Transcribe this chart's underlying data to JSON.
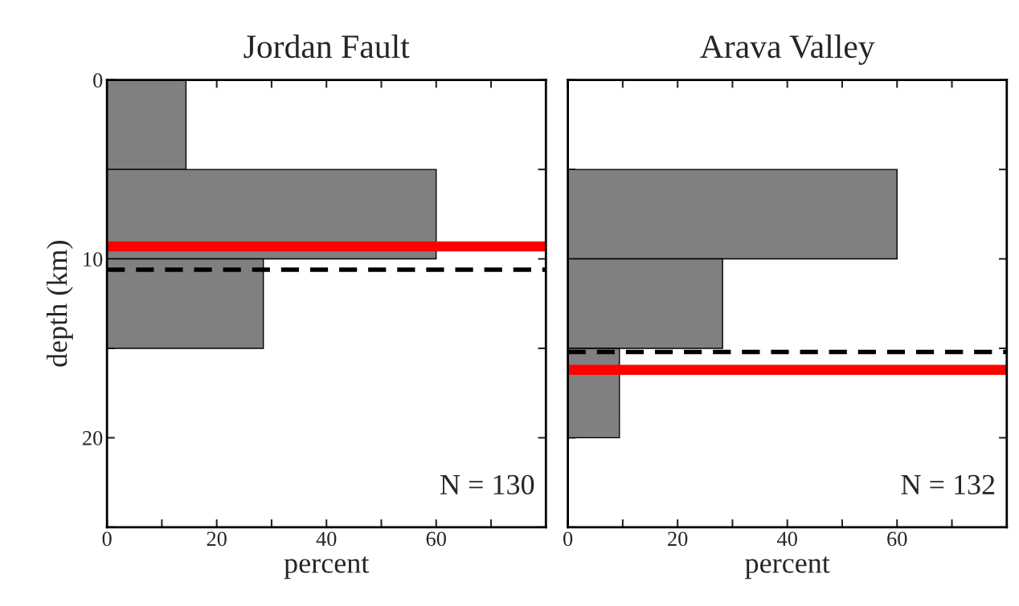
{
  "chart_data": [
    {
      "type": "histogram",
      "title": "Jordan Fault",
      "xlabel": "percent",
      "ylabel": "depth (km)",
      "orientation": "horizontal",
      "bins": [
        0,
        5,
        10,
        15
      ],
      "values": [
        14.4,
        60,
        28.5
      ],
      "color": "#808080",
      "xlim": [
        0,
        80
      ],
      "xticks": [
        0,
        {
          "value": 10,
          "label": null
        },
        20,
        {
          "value": 30,
          "label": null
        },
        40,
        {
          "value": 50,
          "label": null
        },
        60,
        {
          "value": 70,
          "label": null
        }
      ],
      "ylim": [
        25,
        0
      ],
      "yticks": [
        0,
        {
          "value": 5,
          "label": null
        },
        10,
        {
          "value": 15,
          "label": null
        },
        20,
        {
          "value": 25,
          "label": null
        }
      ],
      "ref_lines": [
        {
          "axis": "y",
          "value": 9.3,
          "color": "#ff0000",
          "line_style": "solid"
        },
        {
          "axis": "y",
          "value": 10.6,
          "color": "#000000",
          "line_style": "dashed"
        }
      ],
      "annotations": [
        "N = 130"
      ],
      "grid": false,
      "legend": false
    },
    {
      "type": "histogram",
      "title": "Arava Valley",
      "xlabel": "percent",
      "orientation": "horizontal",
      "bins": [
        0,
        5,
        10,
        15,
        20
      ],
      "values": [
        0,
        60,
        28.2,
        9.4
      ],
      "color": "#808080",
      "xlim": [
        0,
        80
      ],
      "xticks": [
        0,
        {
          "value": 10,
          "label": null
        },
        20,
        {
          "value": 30,
          "label": null
        },
        40,
        {
          "value": 50,
          "label": null
        },
        60,
        {
          "value": 70,
          "label": null
        }
      ],
      "ylim": [
        25,
        0
      ],
      "yticks": [
        0,
        {
          "value": 5,
          "label": null
        },
        10,
        {
          "value": 15,
          "label": null
        },
        20,
        {
          "value": 25,
          "label": null
        }
      ],
      "tick_labels": "x",
      "ref_lines": [
        {
          "axis": "y",
          "value": 15.2,
          "color": "#000000",
          "line_style": "dashed"
        },
        {
          "axis": "y",
          "value": 16.2,
          "color": "#ff0000",
          "line_style": "solid"
        }
      ],
      "annotations": [
        "N = 132"
      ],
      "grid": false,
      "legend": false
    }
  ]
}
